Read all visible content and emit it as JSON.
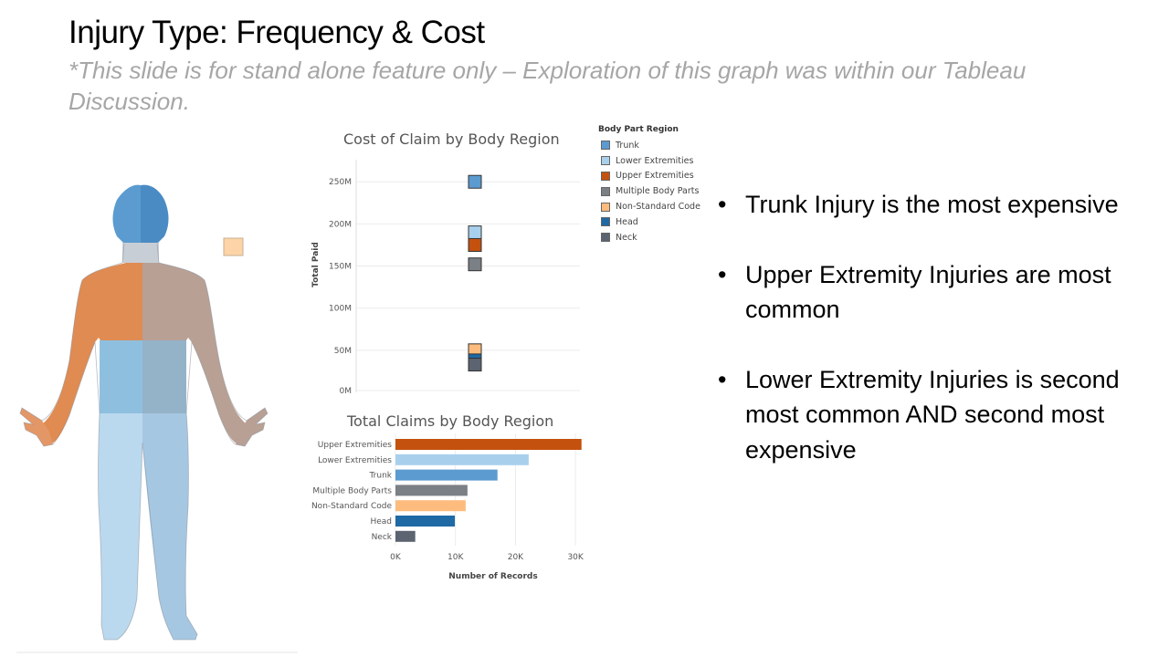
{
  "slide": {
    "title": "Injury Type: Frequency & Cost",
    "subtitle": "*This slide is for stand alone feature only – Exploration of this graph was within our Tableau Discussion."
  },
  "colors": {
    "trunk": "#5b9bd0",
    "lower_extremities": "#a8d0ec",
    "upper_extremities": "#c4510e",
    "multiple_body_parts": "#7b7f86",
    "non_standard_code": "#fdbc7d",
    "head": "#1f6aa5",
    "neck": "#5b6470"
  },
  "legend": {
    "title": "Body Part Region",
    "items": [
      {
        "label": "Trunk",
        "color": "#5b9bd0"
      },
      {
        "label": "Lower Extremities",
        "color": "#a8d0ec"
      },
      {
        "label": "Upper Extremities",
        "color": "#c4510e"
      },
      {
        "label": "Multiple Body Parts",
        "color": "#7b7f86"
      },
      {
        "label": "Non-Standard Code",
        "color": "#fdbc7d"
      },
      {
        "label": "Head",
        "color": "#1f6aa5"
      },
      {
        "label": "Neck",
        "color": "#5b6470"
      }
    ]
  },
  "chart_data": [
    {
      "type": "scatter",
      "title": "Cost of Claim by Body Region",
      "xlabel": "",
      "ylabel": "Total Paid",
      "ylim": [
        0,
        260
      ],
      "yticks": [
        "0M",
        "50M",
        "100M",
        "150M",
        "200M",
        "250M"
      ],
      "grid": true,
      "points": [
        {
          "category": "Trunk",
          "value": 250,
          "color": "#5b9bd0"
        },
        {
          "category": "Lower Extremities",
          "value": 190,
          "color": "#a8d0ec"
        },
        {
          "category": "Upper Extremities",
          "value": 175,
          "color": "#c4510e"
        },
        {
          "category": "Multiple Body Parts",
          "value": 152,
          "color": "#7b7f86"
        },
        {
          "category": "Non-Standard Code",
          "value": 50,
          "color": "#fdbc7d"
        },
        {
          "category": "Head",
          "value": 38,
          "color": "#1f6aa5"
        },
        {
          "category": "Neck",
          "value": 33,
          "color": "#5b6470"
        }
      ]
    },
    {
      "type": "bar",
      "orientation": "horizontal",
      "title": "Total Claims by Body Region",
      "xlabel": "Number of Records",
      "ylabel": "",
      "xlim": [
        0,
        31500
      ],
      "xticks": [
        "0K",
        "10K",
        "20K",
        "30K"
      ],
      "categories": [
        "Upper Extremities",
        "Lower Extremities",
        "Trunk",
        "Multiple Body Parts",
        "Non-Standard Code",
        "Head",
        "Neck"
      ],
      "values": [
        31000,
        22200,
        17000,
        12000,
        11700,
        9900,
        3300
      ],
      "colors": [
        "#c4510e",
        "#a8d0ec",
        "#5b9bd0",
        "#7b7f86",
        "#fdbc7d",
        "#1f6aa5",
        "#5b6470"
      ]
    }
  ],
  "bullets": [
    "Trunk Injury is the most expensive",
    "Upper Extremity Injuries are most common",
    "Lower Extremity Injuries is second most common AND second most expensive"
  ],
  "bullet_symbol": "•"
}
